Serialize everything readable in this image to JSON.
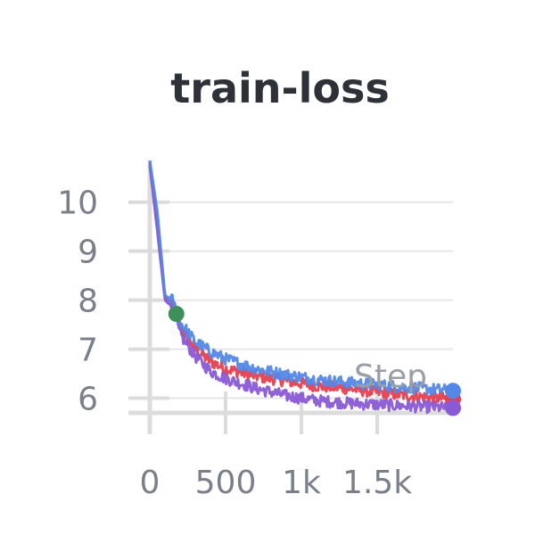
{
  "chart_data": {
    "type": "line",
    "title": "train-loss",
    "xlabel": "Step",
    "ylabel": "",
    "xlim": [
      0,
      2000
    ],
    "ylim": [
      5.7,
      10.85
    ],
    "x_ticks": [
      {
        "value": 0,
        "label": "0"
      },
      {
        "value": 500,
        "label": "500"
      },
      {
        "value": 1000,
        "label": "1k"
      },
      {
        "value": 1500,
        "label": "1.5k"
      }
    ],
    "y_ticks": [
      {
        "value": 6,
        "label": "6"
      },
      {
        "value": 7,
        "label": "7"
      },
      {
        "value": 8,
        "label": "8"
      },
      {
        "value": 9,
        "label": "9"
      },
      {
        "value": 10,
        "label": "10"
      }
    ],
    "grid": true,
    "series": [
      {
        "color": "#e5404f",
        "noise": 0.12,
        "x": [
          0,
          50,
          100,
          150,
          200,
          300,
          400,
          500,
          700,
          900,
          1100,
          1300,
          1500,
          1700,
          2000
        ],
        "y": [
          10.8,
          9.6,
          8.05,
          7.9,
          7.45,
          7.0,
          6.75,
          6.6,
          6.45,
          6.35,
          6.25,
          6.2,
          6.12,
          6.05,
          5.98
        ]
      },
      {
        "color": "#8a5ad6",
        "noise": 0.12,
        "x": [
          0,
          50,
          100,
          150,
          200,
          300,
          400,
          500,
          700,
          900,
          1000,
          1100,
          1300,
          1500,
          1700,
          2000
        ],
        "y": [
          10.75,
          9.4,
          8.0,
          7.85,
          7.3,
          6.85,
          6.55,
          6.4,
          6.2,
          6.05,
          6.0,
          5.95,
          5.9,
          5.87,
          5.84,
          5.8
        ]
      },
      {
        "color": "#5387e8",
        "noise": 0.12,
        "x": [
          0,
          50,
          100,
          150,
          200,
          300,
          400,
          500,
          700,
          900,
          1100,
          1300,
          1500,
          1700,
          2000
        ],
        "y": [
          10.85,
          9.8,
          8.1,
          8.0,
          7.55,
          7.15,
          6.95,
          6.8,
          6.6,
          6.48,
          6.38,
          6.32,
          6.27,
          6.22,
          6.15
        ]
      }
    ],
    "markers": [
      {
        "color": "#3f8f5a",
        "x": 175,
        "y": 7.72
      }
    ]
  }
}
